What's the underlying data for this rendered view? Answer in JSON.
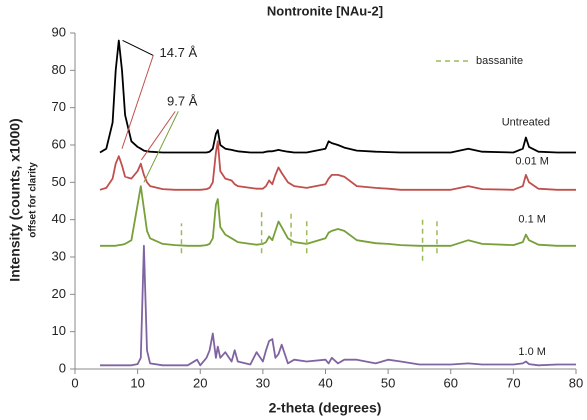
{
  "chart_data": {
    "type": "line",
    "title": "Nontronite [NAu-2]",
    "x_label": "2-theta (degrees)",
    "y_label": "Intensity (counts, x1000)",
    "y_sublabel": "offset for clarity",
    "x": [
      4,
      5,
      6,
      6.5,
      7,
      7.5,
      8,
      9,
      10,
      10.5,
      11,
      11.5,
      12,
      14,
      16,
      18,
      19.5,
      20,
      21,
      21.5,
      22,
      22.5,
      22.8,
      23.2,
      24,
      25,
      25.5,
      26,
      28,
      29,
      30,
      30.5,
      31,
      31.5,
      32,
      32.5,
      33,
      34,
      35,
      37,
      40,
      40.5,
      41,
      42,
      43,
      45,
      48,
      50,
      52,
      55,
      60,
      62.8,
      65,
      70,
      71.5,
      72,
      72.5,
      74,
      77,
      80
    ],
    "series": [
      {
        "name": "Untreated",
        "color": "#000000",
        "values": [
          58,
          59,
          66,
          80,
          88,
          80,
          68,
          61,
          59.5,
          59,
          58.5,
          58.3,
          58.2,
          58,
          58,
          58,
          58,
          58,
          58,
          58.2,
          59,
          63,
          64,
          60,
          59,
          58.7,
          58.5,
          58.3,
          58,
          58,
          58,
          58.2,
          58.3,
          58.3,
          58.5,
          58.7,
          58.5,
          58.2,
          58,
          58,
          59,
          61,
          60.5,
          60,
          59.3,
          58.5,
          58.2,
          58.1,
          58,
          58,
          58,
          59,
          58.2,
          58,
          59,
          62,
          59.5,
          58.2,
          58,
          58
        ]
      },
      {
        "name": "0.01 M",
        "color": "#c0504d",
        "values": [
          48,
          48.5,
          51,
          55,
          57,
          54.5,
          51.5,
          51,
          53,
          55,
          52,
          50,
          49,
          48.2,
          48,
          48,
          48,
          48,
          48.2,
          48.5,
          50,
          58,
          61,
          53,
          51,
          50.5,
          49.5,
          49,
          48.5,
          48.3,
          48.3,
          49,
          50.5,
          49.5,
          52,
          54,
          52.5,
          50,
          49,
          48.5,
          49.5,
          51,
          52,
          52,
          51.5,
          49,
          48.5,
          48.3,
          48,
          48,
          48,
          49,
          48.2,
          48,
          49,
          52,
          50,
          48.3,
          48,
          48
        ]
      },
      {
        "name": "0.1 M",
        "color": "#77a03a",
        "values": [
          33,
          33,
          33,
          33,
          33.2,
          33.3,
          33.5,
          34.5,
          44,
          49,
          43,
          37,
          35,
          33.5,
          33.2,
          33,
          33,
          33,
          33.2,
          33.5,
          35,
          44,
          45.5,
          38,
          36,
          35,
          34.5,
          34,
          33.5,
          33.3,
          33.5,
          34,
          35.5,
          34.5,
          37,
          39.5,
          38,
          35,
          34,
          33.5,
          35,
          36.5,
          37,
          37.5,
          37,
          34.5,
          33.7,
          33.5,
          33.2,
          33,
          33,
          34.5,
          33.5,
          33.2,
          34,
          36,
          34.5,
          33.3,
          33,
          33
        ]
      },
      {
        "name": "1.0 M",
        "color": "#8064a2",
        "values": [
          1,
          1,
          1,
          1,
          1,
          1,
          1,
          1,
          1.3,
          3,
          33,
          5,
          1.5,
          1,
          1,
          1,
          2.5,
          1,
          3,
          5,
          9.5,
          3,
          6,
          3,
          4.5,
          2,
          5,
          2,
          1.2,
          4.5,
          2,
          5,
          7.5,
          8,
          3,
          4,
          6.5,
          1.5,
          2.5,
          2,
          2.5,
          1.5,
          3,
          1.5,
          2.5,
          2.5,
          1.5,
          2.5,
          2,
          1.2,
          1.2,
          1.5,
          1.2,
          1.2,
          1.5,
          2,
          1.3,
          1,
          1.2,
          1.2
        ]
      }
    ],
    "reference_lines": {
      "name": "bassanite",
      "color": "#9bbb59",
      "x": [
        17,
        29.8,
        34.5,
        37,
        55.5,
        57.8
      ],
      "y0": [
        31,
        31,
        33,
        31,
        29,
        31
      ],
      "y1": [
        39,
        42,
        42,
        40,
        40,
        40
      ]
    },
    "annotations": [
      "14.7 Å",
      "9.7 Å"
    ],
    "xlim": [
      0,
      80
    ],
    "xticks": [
      0,
      10,
      20,
      30,
      40,
      50,
      60,
      70,
      80
    ],
    "ylim": [
      0,
      90
    ],
    "yticks": [
      0,
      10,
      20,
      30,
      40,
      50,
      60,
      70,
      80,
      90
    ],
    "grid": false
  }
}
